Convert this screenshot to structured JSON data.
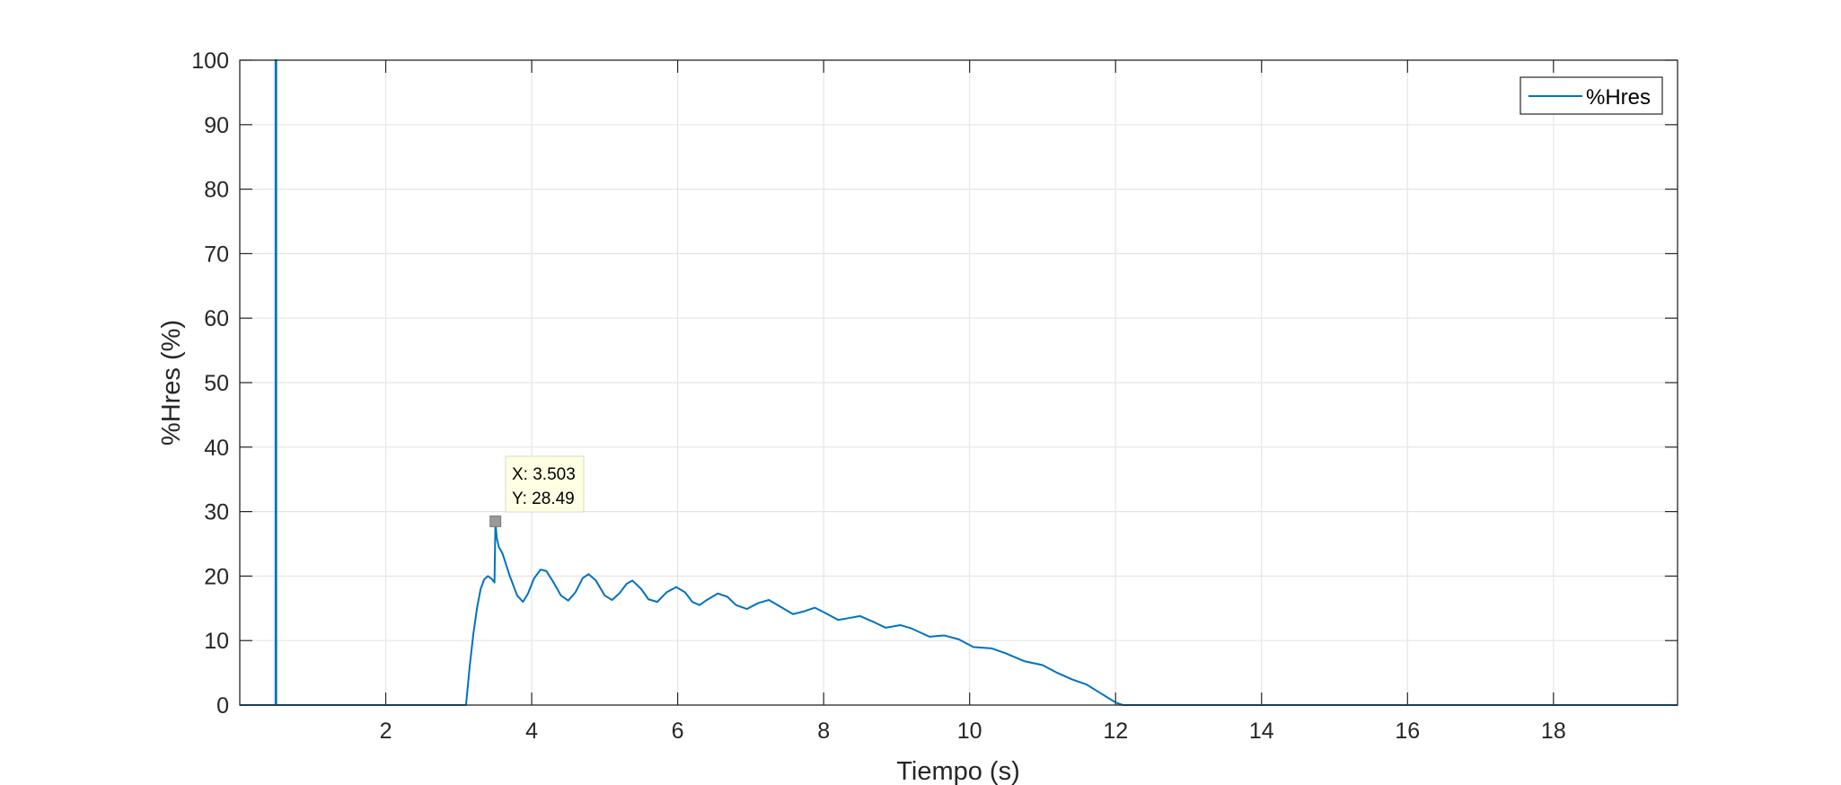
{
  "chart_data": {
    "type": "line",
    "title": "",
    "xlabel": "Tiempo (s)",
    "ylabel": "%Hres (%)",
    "xlim": [
      0,
      19.7
    ],
    "ylim": [
      0,
      100
    ],
    "xticks": [
      2,
      4,
      6,
      8,
      10,
      12,
      14,
      16,
      18
    ],
    "yticks": [
      0,
      10,
      20,
      30,
      40,
      50,
      60,
      70,
      80,
      90,
      100
    ],
    "grid": true,
    "legend_position": "top-right",
    "series": [
      {
        "name": "%Hres",
        "color": "#0072BD",
        "points": [
          [
            0,
            0
          ],
          [
            0.49,
            0
          ],
          [
            0.49,
            100
          ],
          [
            0.5,
            100
          ],
          [
            0.5,
            0
          ],
          [
            3.1,
            0
          ],
          [
            3.15,
            6
          ],
          [
            3.2,
            11
          ],
          [
            3.25,
            15
          ],
          [
            3.3,
            18
          ],
          [
            3.35,
            19.5
          ],
          [
            3.4,
            20
          ],
          [
            3.45,
            19.6
          ],
          [
            3.49,
            19
          ],
          [
            3.503,
            28.49
          ],
          [
            3.52,
            26
          ],
          [
            3.55,
            24.5
          ],
          [
            3.6,
            23.5
          ],
          [
            3.7,
            20
          ],
          [
            3.8,
            17
          ],
          [
            3.88,
            16
          ],
          [
            3.95,
            17.3
          ],
          [
            4.03,
            19.6
          ],
          [
            4.12,
            21
          ],
          [
            4.2,
            20.8
          ],
          [
            4.3,
            19
          ],
          [
            4.4,
            17
          ],
          [
            4.5,
            16.2
          ],
          [
            4.6,
            17.5
          ],
          [
            4.7,
            19.7
          ],
          [
            4.78,
            20.3
          ],
          [
            4.88,
            19.3
          ],
          [
            5.0,
            17
          ],
          [
            5.1,
            16.3
          ],
          [
            5.2,
            17.3
          ],
          [
            5.3,
            18.8
          ],
          [
            5.38,
            19.3
          ],
          [
            5.5,
            18
          ],
          [
            5.6,
            16.4
          ],
          [
            5.72,
            16
          ],
          [
            5.85,
            17.5
          ],
          [
            5.98,
            18.3
          ],
          [
            6.1,
            17.5
          ],
          [
            6.2,
            16
          ],
          [
            6.3,
            15.5
          ],
          [
            6.4,
            16.3
          ],
          [
            6.55,
            17.3
          ],
          [
            6.68,
            16.8
          ],
          [
            6.8,
            15.5
          ],
          [
            6.95,
            14.9
          ],
          [
            7.1,
            15.8
          ],
          [
            7.25,
            16.3
          ],
          [
            7.4,
            15.3
          ],
          [
            7.58,
            14.1
          ],
          [
            7.72,
            14.5
          ],
          [
            7.88,
            15.1
          ],
          [
            8.02,
            14.3
          ],
          [
            8.2,
            13.2
          ],
          [
            8.35,
            13.5
          ],
          [
            8.5,
            13.8
          ],
          [
            8.7,
            12.8
          ],
          [
            8.85,
            12
          ],
          [
            9.05,
            12.4
          ],
          [
            9.2,
            11.9
          ],
          [
            9.45,
            10.6
          ],
          [
            9.65,
            10.8
          ],
          [
            9.85,
            10.2
          ],
          [
            10.05,
            9
          ],
          [
            10.3,
            8.8
          ],
          [
            10.5,
            8
          ],
          [
            10.75,
            6.8
          ],
          [
            11.0,
            6.2
          ],
          [
            11.2,
            5
          ],
          [
            11.4,
            4
          ],
          [
            11.6,
            3.2
          ],
          [
            11.8,
            1.8
          ],
          [
            12.0,
            0.4
          ],
          [
            12.1,
            0
          ],
          [
            19.7,
            0
          ]
        ]
      }
    ],
    "annotation": {
      "x": 3.503,
      "y": 28.49,
      "x_label": "X: 3.503",
      "y_label": "Y: 28.49"
    }
  }
}
